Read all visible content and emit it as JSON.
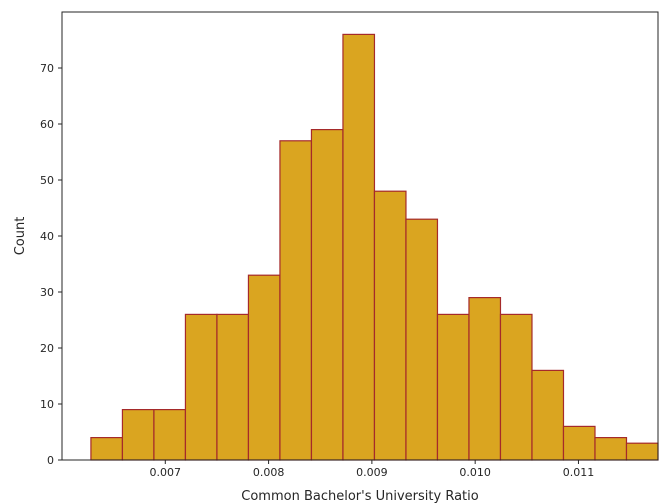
{
  "chart_data": {
    "type": "bar",
    "title": "",
    "xlabel": "Common Bachelor's University Ratio",
    "ylabel": "Count",
    "bin_edges": [
      0.00628,
      0.006585,
      0.00689,
      0.007195,
      0.0075,
      0.007805,
      0.00811,
      0.008415,
      0.00872,
      0.009025,
      0.00933,
      0.009635,
      0.00994,
      0.010245,
      0.01055,
      0.010855,
      0.01116,
      0.011465,
      0.01177
    ],
    "values": [
      4,
      9,
      9,
      26,
      26,
      33,
      57,
      59,
      76,
      48,
      43,
      26,
      29,
      26,
      16,
      6,
      4,
      3
    ],
    "xlim": [
      0.006,
      0.01177
    ],
    "ylim": [
      0,
      80
    ],
    "x_ticks": [
      0.007,
      0.008,
      0.009,
      0.01,
      0.011
    ],
    "x_tick_labels": [
      "0.007",
      "0.008",
      "0.009",
      "0.010",
      "0.011"
    ],
    "y_ticks": [
      0,
      10,
      20,
      30,
      40,
      50,
      60,
      70
    ],
    "y_tick_labels": [
      "0",
      "10",
      "20",
      "30",
      "40",
      "50",
      "60",
      "70"
    ],
    "grid": false,
    "legend": "none",
    "bar_color": "#DAA520",
    "edge_color": "#A52A2A"
  }
}
